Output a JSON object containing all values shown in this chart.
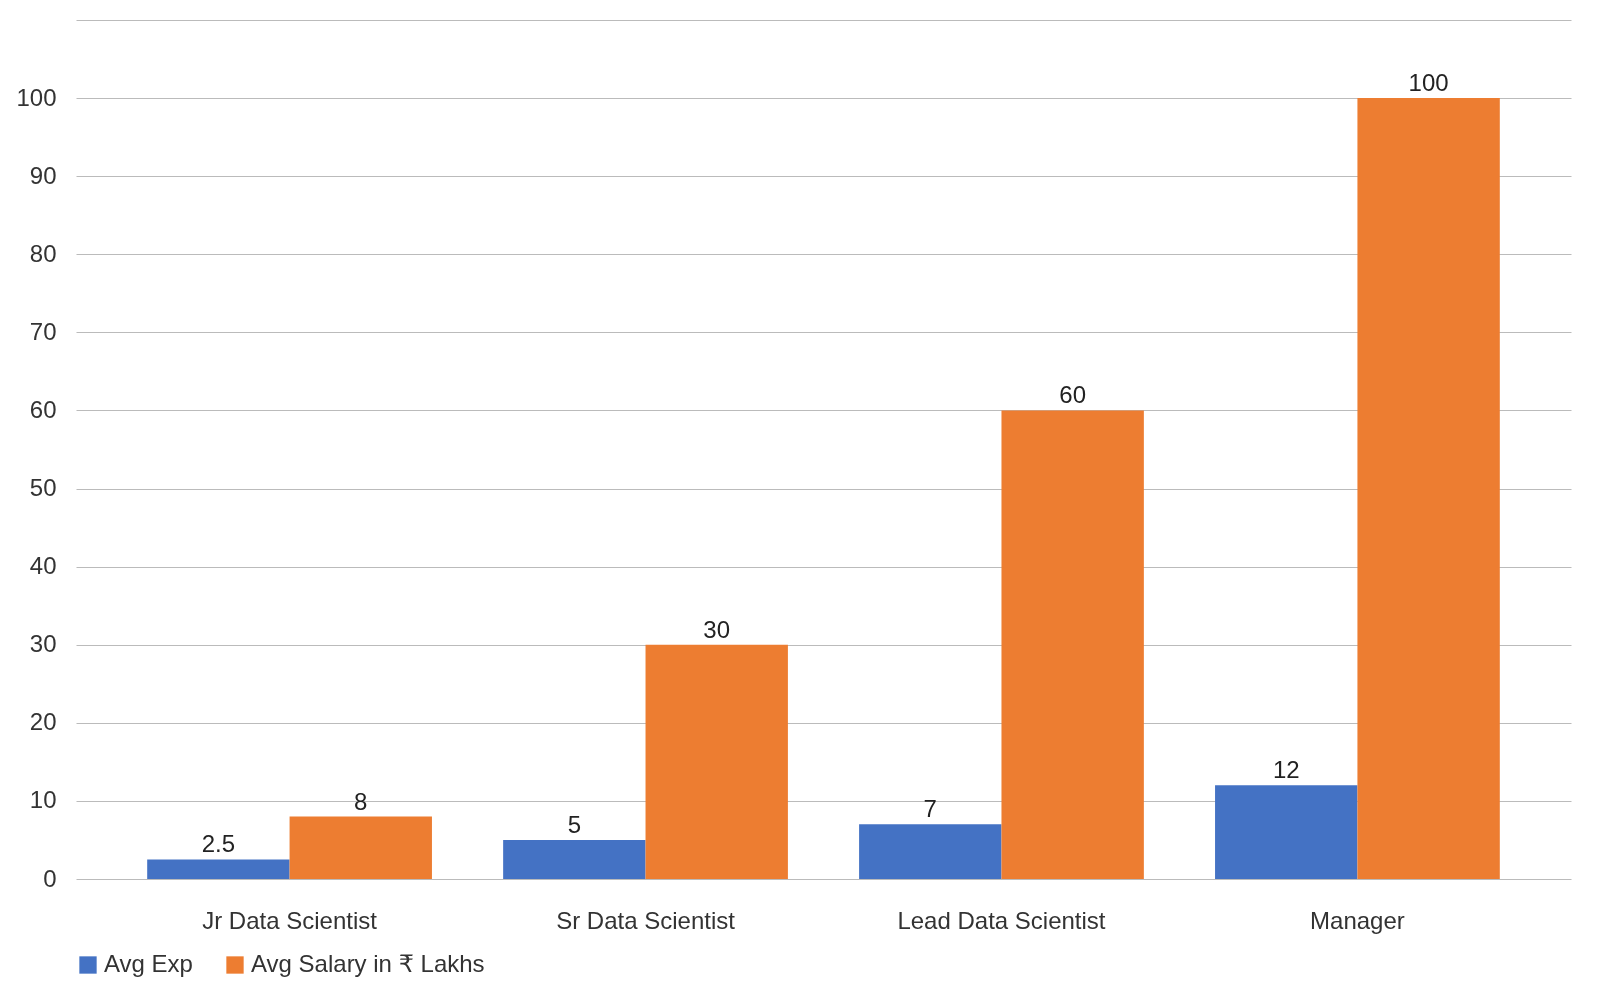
{
  "chart_data": {
    "type": "bar",
    "categories": [
      "Jr Data Scientist",
      "Sr Data Scientist",
      "Lead Data Scientist",
      "Manager"
    ],
    "series": [
      {
        "name": "Avg Exp",
        "color": "#4472c4",
        "values": [
          2.5,
          5,
          7,
          12
        ]
      },
      {
        "name": "Avg Salary in ₹ Lakhs",
        "color": "#ed7d31",
        "values": [
          8,
          30,
          60,
          100
        ]
      }
    ],
    "ylim": [
      0,
      110
    ],
    "yticks": [
      0,
      10,
      20,
      30,
      40,
      50,
      60,
      70,
      80,
      90,
      100,
      {
        "value": 110,
        "label": null
      }
    ],
    "grid": true,
    "legend": "bottom",
    "data_labels": true
  }
}
